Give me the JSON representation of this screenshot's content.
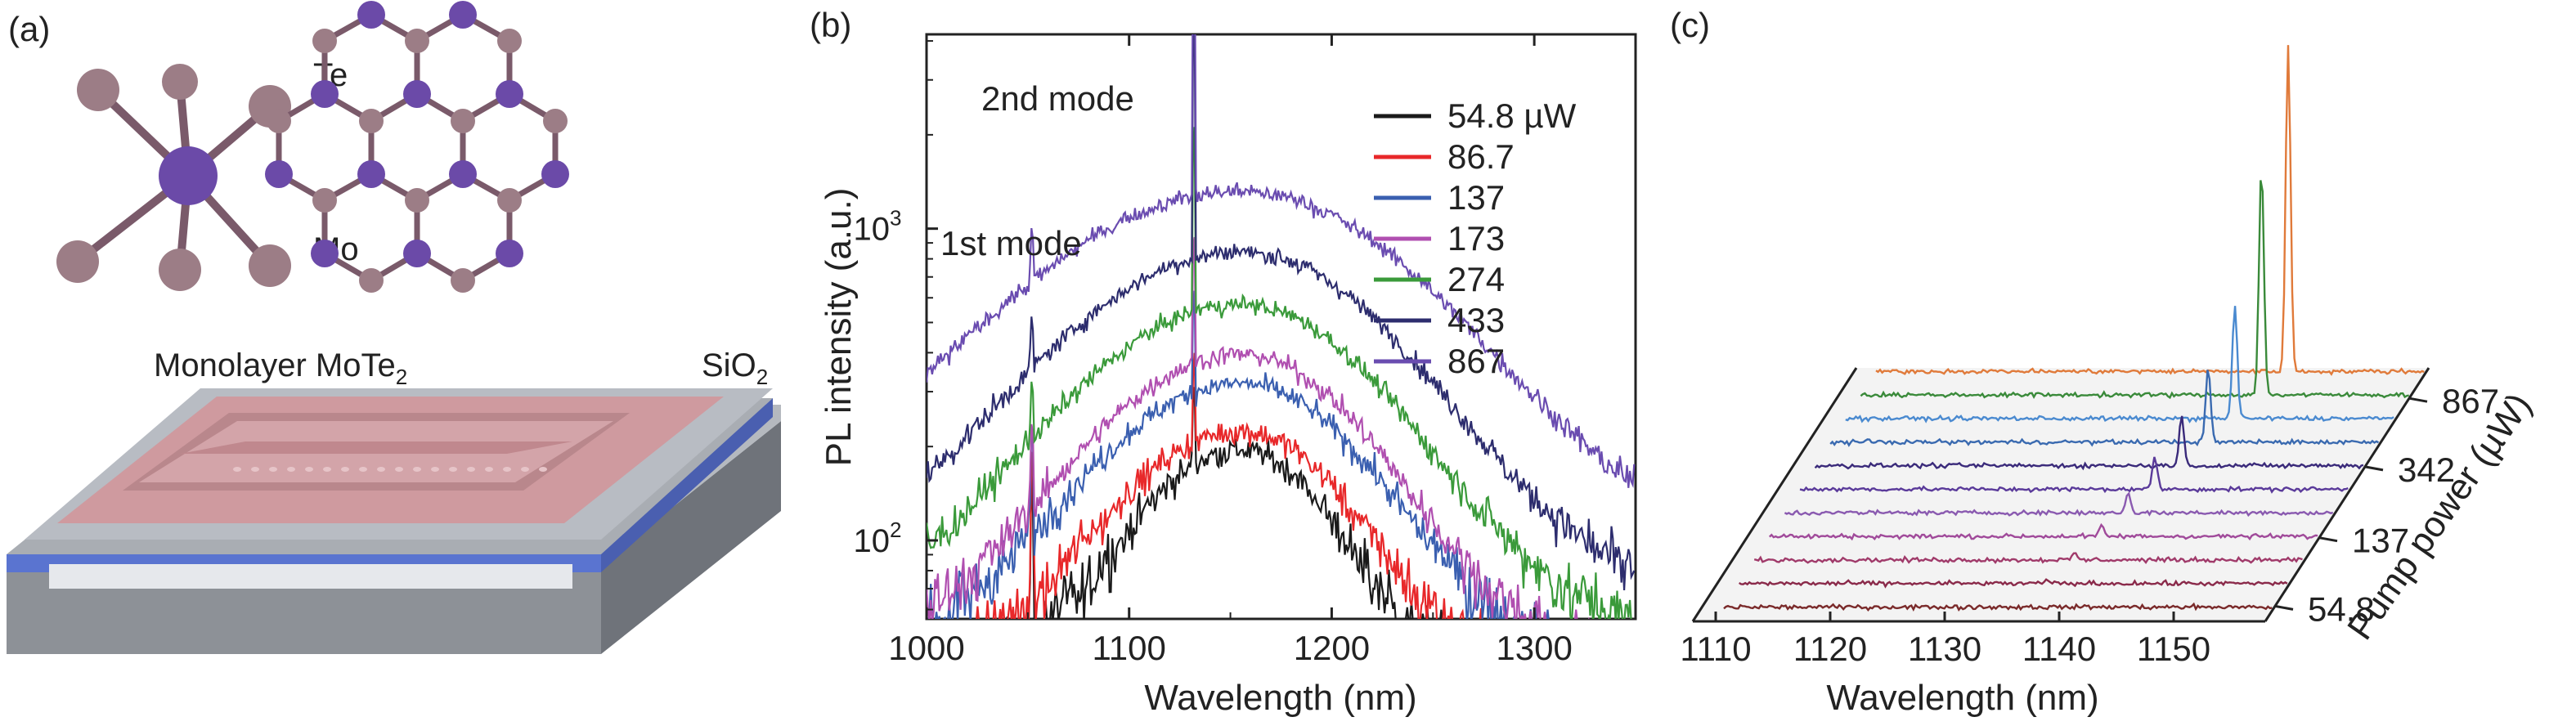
{
  "panel_a": {
    "label": "(a)",
    "atom_te": "Te",
    "atom_mo": "Mo",
    "layer_label": "Monolayer MoTe",
    "layer_sub": "2",
    "substrate_label": "SiO",
    "substrate_sub": "2",
    "colors": {
      "mo": "#6b4aa8",
      "te": "#9c7d86",
      "bond": "#7a5a6a"
    }
  },
  "chart_data": [
    {
      "panel": "(b)",
      "type": "line",
      "title": "",
      "xlabel": "Wavelength (nm)",
      "ylabel": "PL intensity (a.u.)",
      "yscale": "log",
      "xlim": [
        1000,
        1350
      ],
      "ylim": [
        56,
        4200
      ],
      "x_ticks": [
        1000,
        1100,
        1200,
        1300
      ],
      "y_ticks": [
        {
          "value": 100,
          "base": "10",
          "exp": "2"
        },
        {
          "value": 1000,
          "base": "10",
          "exp": "3"
        }
      ],
      "legend_position": "top-right",
      "annotations": [
        {
          "text": "2nd mode",
          "x": 1132,
          "y": 3300
        },
        {
          "text": "1st mode",
          "x": 1052,
          "y": 1000
        }
      ],
      "mode_wavelengths": [
        1052,
        1132
      ],
      "series": [
        {
          "name": "54.8 µW",
          "color": "#1a1a1a",
          "peak": 150,
          "width": 38,
          "spike1": 1.0,
          "spike2": 1.1
        },
        {
          "name": "86.7",
          "color": "#e8282a",
          "peak": 175,
          "width": 44,
          "spike1": 1.0,
          "spike2": 1.2
        },
        {
          "name": "137",
          "color": "#3a5fb0",
          "peak": 255,
          "width": 50,
          "spike1": 1.0,
          "spike2": 1.6
        },
        {
          "name": "173",
          "color": "#b04fb0",
          "peak": 320,
          "width": 50,
          "spike1": 1.0,
          "spike2": 2.2
        },
        {
          "name": "274",
          "color": "#3a9a3a",
          "peak": 470,
          "width": 55,
          "spike1": 1.0,
          "spike2": 4.0
        },
        {
          "name": "433",
          "color": "#2d2d6e",
          "peak": 700,
          "width": 60,
          "spike1": 1.4,
          "spike2": 7.0
        },
        {
          "name": "867",
          "color": "#6a4cb0",
          "peak": 1100,
          "width": 70,
          "spike1": 2.6,
          "spike2": 10.5
        }
      ]
    },
    {
      "panel": "(c)",
      "type": "line",
      "title": "",
      "xlabel": "Wavelength (nm)",
      "ylabel": "Pump power (µW)",
      "xlim": [
        1108,
        1158
      ],
      "x_ticks": [
        1110,
        1120,
        1130,
        1140,
        1150
      ],
      "y_ticks": [
        "54.8",
        "137",
        "342",
        "867"
      ],
      "peak_wavelengths_start": 1136,
      "peak_wavelengths_end": 1146,
      "traces": [
        {
          "color": "#7a2a2a",
          "peak": 0.0
        },
        {
          "color": "#8a2a4a",
          "peak": 0.4
        },
        {
          "color": "#a03a6a",
          "peak": 0.8
        },
        {
          "color": "#a04a9a",
          "peak": 1.2
        },
        {
          "color": "#8a5ab0",
          "peak": 2.5
        },
        {
          "color": "#5a3a9a",
          "peak": 4.0
        },
        {
          "color": "#3a2a7a",
          "peak": 6.0
        },
        {
          "color": "#3a6ab0",
          "peak": 9.0
        },
        {
          "color": "#4a8ad0",
          "peak": 14.0
        },
        {
          "color": "#3a8a3a",
          "peak": 28.0
        },
        {
          "color": "#e07a3a",
          "peak": 40.0
        }
      ]
    }
  ]
}
